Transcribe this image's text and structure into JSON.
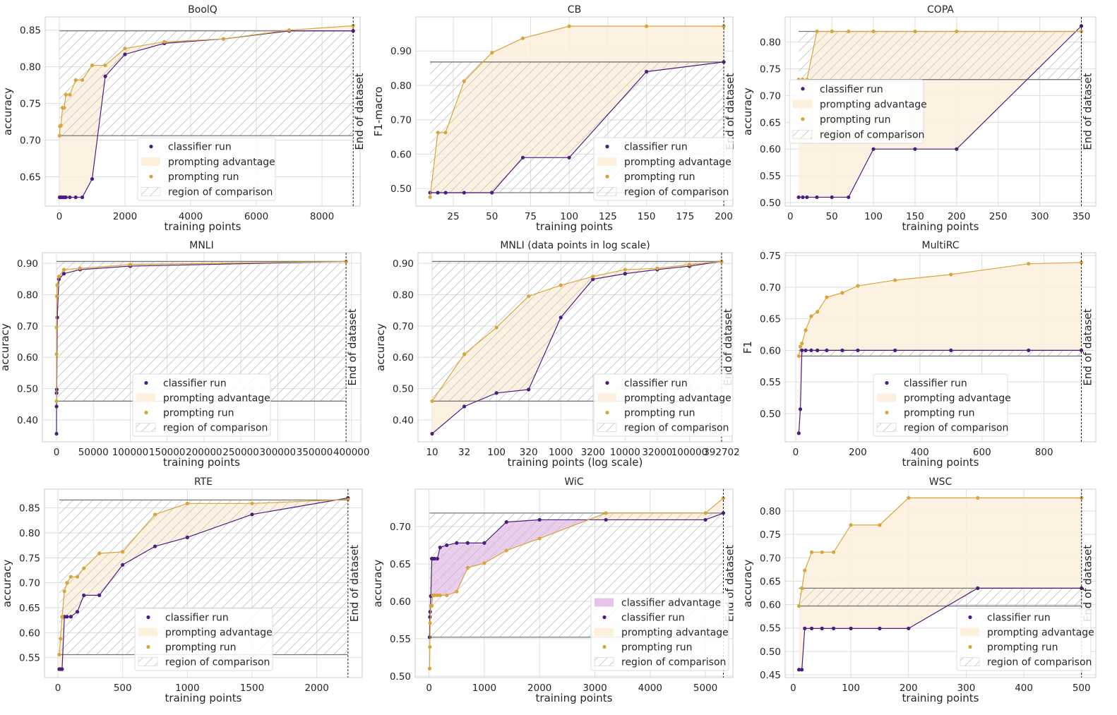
{
  "colors": {
    "classifier": "#4c1d80",
    "prompting": "#d8a53c",
    "prompting_advantage_fill": "#fdf0dc",
    "classifier_advantage_fill": "#e6c4ea",
    "region_lines": "#777777",
    "grid": "#dddddd"
  },
  "chart_data": [
    {
      "type": "line",
      "title": "BoolQ",
      "xlabel": "training points",
      "ylabel": "accuracy",
      "xlim": [
        -430,
        9160
      ],
      "ylim": [
        0.61,
        0.868
      ],
      "grid": true,
      "legend_placement": "lower center",
      "xticks": [
        0,
        2000,
        4000,
        6000,
        8000
      ],
      "xtick_labels": [
        "0",
        "2000",
        "4000",
        "6000",
        "8000"
      ],
      "yticks": [
        0.65,
        0.7,
        0.75,
        0.8,
        0.85
      ],
      "ytick_labels": [
        "0.65",
        "0.70",
        "0.75",
        "0.80",
        "0.85"
      ],
      "legend": [
        "classifier run",
        "prompting advantage",
        "prompting run",
        "region of comparison"
      ],
      "end_marker": {
        "x": 8950,
        "label": "End of dataset"
      },
      "region_of_comparison": {
        "x": [
          10,
          8950
        ],
        "y": [
          0.706,
          0.849
        ]
      },
      "x": [
        10,
        20,
        50,
        100,
        150,
        200,
        320,
        500,
        700,
        1000,
        1400,
        2000,
        3200,
        5000,
        7000,
        8950
      ],
      "series": [
        {
          "name": "classifier run",
          "values": [
            0.622,
            0.622,
            0.622,
            0.622,
            0.622,
            0.622,
            0.622,
            0.622,
            0.622,
            0.647,
            0.787,
            0.817,
            0.832,
            0.838,
            0.849,
            0.849
          ]
        },
        {
          "name": "prompting run",
          "values": [
            0.706,
            0.719,
            0.72,
            0.744,
            0.744,
            0.762,
            0.762,
            0.782,
            0.782,
            0.802,
            0.802,
            0.825,
            0.834,
            0.838,
            0.85,
            0.856
          ]
        }
      ]
    },
    {
      "type": "line",
      "title": "CB",
      "xlabel": "training points",
      "ylabel": "F1-macro",
      "xlim": [
        0.8,
        205.9
      ],
      "ylim": [
        0.449,
        0.999
      ],
      "grid": true,
      "legend_placement": "lower right",
      "xticks": [
        25,
        50,
        75,
        100,
        125,
        150,
        175,
        200
      ],
      "xtick_labels": [
        "25",
        "50",
        "75",
        "100",
        "125",
        "150",
        "175",
        "200"
      ],
      "yticks": [
        0.5,
        0.6,
        0.7,
        0.8,
        0.9
      ],
      "ytick_labels": [
        "0.50",
        "0.60",
        "0.70",
        "0.80",
        "0.90"
      ],
      "legend": [
        "classifier run",
        "prompting advantage",
        "prompting run",
        "region of comparison"
      ],
      "end_marker": {
        "x": 200,
        "label": "End of dataset"
      },
      "region_of_comparison": {
        "x": [
          10,
          200
        ],
        "y": [
          0.488,
          0.868
        ]
      },
      "x": [
        10,
        15,
        20,
        32,
        50,
        70,
        100,
        150,
        200
      ],
      "series": [
        {
          "name": "classifier run",
          "values": [
            0.488,
            0.488,
            0.488,
            0.488,
            0.488,
            0.59,
            0.59,
            0.84,
            0.868
          ]
        },
        {
          "name": "prompting run",
          "values": [
            0.475,
            0.663,
            0.663,
            0.812,
            0.895,
            0.937,
            0.972,
            0.972,
            0.972
          ]
        }
      ]
    },
    {
      "type": "line",
      "title": "COPA",
      "xlabel": "training points",
      "ylabel": "accuracy",
      "xlim": [
        -6.2,
        367.4
      ],
      "ylim": [
        0.4934,
        0.847
      ],
      "grid": true,
      "legend_placement": "center left",
      "xticks": [
        0,
        50,
        100,
        150,
        200,
        250,
        300,
        350
      ],
      "xtick_labels": [
        "0",
        "50",
        "100",
        "150",
        "200",
        "250",
        "300",
        "350"
      ],
      "yticks": [
        0.5,
        0.55,
        0.6,
        0.65,
        0.7,
        0.75,
        0.8
      ],
      "ytick_labels": [
        "0.50",
        "0.55",
        "0.60",
        "0.65",
        "0.70",
        "0.75",
        "0.80"
      ],
      "legend": [
        "classifier run",
        "prompting advantage",
        "prompting run",
        "region of comparison"
      ],
      "end_marker": {
        "x": 350,
        "label": "End of dataset"
      },
      "region_of_comparison": {
        "x": [
          10,
          350
        ],
        "y": [
          0.73,
          0.82
        ]
      },
      "x": [
        10,
        15,
        20,
        32,
        50,
        70,
        100,
        150,
        200,
        350
      ],
      "series": [
        {
          "name": "classifier run",
          "values": [
            0.51,
            0.51,
            0.51,
            0.51,
            0.51,
            0.51,
            0.6,
            0.6,
            0.6,
            0.83
          ]
        },
        {
          "name": "prompting run",
          "values": [
            0.73,
            0.73,
            0.73,
            0.82,
            0.82,
            0.82,
            0.82,
            0.82,
            0.82,
            0.82
          ]
        }
      ]
    },
    {
      "type": "line",
      "title": "MNLI",
      "xlabel": "training points",
      "ylabel": "accuracy",
      "xlim": [
        -19200,
        412700
      ],
      "ylim": [
        0.33,
        0.934
      ],
      "grid": true,
      "legend_placement": "lower center",
      "xticks": [
        0,
        50000,
        100000,
        150000,
        200000,
        250000,
        300000,
        350000,
        400000
      ],
      "xtick_labels": [
        "0",
        "50000",
        "100000",
        "150000",
        "200000",
        "250000",
        "300000",
        "350000",
        "400000"
      ],
      "yticks": [
        0.4,
        0.5,
        0.6,
        0.7,
        0.8,
        0.9
      ],
      "ytick_labels": [
        "0.40",
        "0.50",
        "0.60",
        "0.70",
        "0.80",
        "0.90"
      ],
      "legend": [
        "classifier run",
        "prompting advantage",
        "prompting run",
        "region of comparison"
      ],
      "end_marker": {
        "x": 392702,
        "label": "End of dataset"
      },
      "region_of_comparison": {
        "x": [
          10,
          392702
        ],
        "y": [
          0.46,
          0.906
        ]
      },
      "x": [
        10,
        32,
        100,
        320,
        1000,
        3200,
        10000,
        32000,
        100000,
        392702
      ],
      "series": [
        {
          "name": "classifier run",
          "values": [
            0.356,
            0.443,
            0.486,
            0.497,
            0.727,
            0.849,
            0.867,
            0.88,
            0.891,
            0.906
          ]
        },
        {
          "name": "prompting run",
          "values": [
            0.46,
            0.61,
            0.695,
            0.795,
            0.83,
            0.858,
            0.88,
            0.884,
            0.896,
            0.906
          ]
        }
      ]
    },
    {
      "type": "line",
      "title": "MNLI (data points in log scale)",
      "xlabel": "training points (log scale)",
      "ylabel": "accuracy",
      "xscale": "log",
      "ylim": [
        0.33,
        0.934
      ],
      "grid": true,
      "legend_placement": "lower right",
      "xticks": [
        10,
        32,
        100,
        320,
        1000,
        3200,
        10000,
        32000,
        100000,
        392702
      ],
      "xtick_labels": [
        "10",
        "32",
        "100",
        "320",
        "1000",
        "3200",
        "10000",
        "32000",
        "100000",
        "392702"
      ],
      "yticks": [
        0.4,
        0.5,
        0.6,
        0.7,
        0.8,
        0.9
      ],
      "ytick_labels": [
        "0.40",
        "0.50",
        "0.60",
        "0.70",
        "0.80",
        "0.90"
      ],
      "legend": [
        "classifier run",
        "prompting advantage",
        "prompting run",
        "region of comparison"
      ],
      "end_marker": {
        "x": 392702,
        "label": "End of dataset"
      },
      "region_of_comparison": {
        "x": [
          10,
          392702
        ],
        "y": [
          0.46,
          0.906
        ]
      },
      "x": [
        10,
        32,
        100,
        320,
        1000,
        3200,
        10000,
        32000,
        100000,
        392702
      ],
      "series": [
        {
          "name": "classifier run",
          "values": [
            0.356,
            0.443,
            0.486,
            0.497,
            0.727,
            0.849,
            0.867,
            0.88,
            0.891,
            0.906
          ]
        },
        {
          "name": "prompting run",
          "values": [
            0.46,
            0.61,
            0.695,
            0.795,
            0.83,
            0.858,
            0.88,
            0.884,
            0.896,
            0.906
          ]
        }
      ]
    },
    {
      "type": "line",
      "title": "MultiRC",
      "xlabel": "training points",
      "ylabel": "F1",
      "xlim": [
        -34,
        966.6
      ],
      "ylim": [
        0.4553,
        0.7545
      ],
      "grid": true,
      "legend_placement": "lower center",
      "xticks": [
        0,
        200,
        400,
        600,
        800
      ],
      "xtick_labels": [
        "0",
        "200",
        "400",
        "600",
        "800"
      ],
      "yticks": [
        0.5,
        0.55,
        0.6,
        0.65,
        0.7,
        0.75
      ],
      "ytick_labels": [
        "0.50",
        "0.55",
        "0.60",
        "0.65",
        "0.70",
        "0.75"
      ],
      "legend": [
        "classifier run",
        "prompting advantage",
        "prompting run",
        "region of comparison"
      ],
      "end_marker": {
        "x": 920,
        "label": "End of dataset"
      },
      "region_of_comparison": {
        "x": [
          10,
          920
        ],
        "y": [
          0.591,
          0.6
        ]
      },
      "x": [
        10,
        15,
        20,
        32,
        50,
        70,
        100,
        150,
        200,
        320,
        500,
        750,
        920
      ],
      "series": [
        {
          "name": "classifier run",
          "values": [
            0.469,
            0.507,
            0.6,
            0.6,
            0.6,
            0.6,
            0.6,
            0.6,
            0.6,
            0.6,
            0.6,
            0.6,
            0.6
          ]
        },
        {
          "name": "prompting run",
          "values": [
            0.591,
            0.606,
            0.611,
            0.632,
            0.654,
            0.661,
            0.684,
            0.691,
            0.702,
            0.711,
            0.72,
            0.737,
            0.739
          ]
        }
      ]
    },
    {
      "type": "line",
      "title": "RTE",
      "xlabel": "training points",
      "ylabel": "accuracy",
      "xlim": [
        -104,
        2351
      ],
      "ylim": [
        0.51,
        0.8877
      ],
      "grid": true,
      "legend_placement": "lower center",
      "xticks": [
        0,
        500,
        1000,
        1500,
        2000
      ],
      "xtick_labels": [
        "0",
        "500",
        "1000",
        "1500",
        "2000"
      ],
      "yticks": [
        0.55,
        0.6,
        0.65,
        0.7,
        0.75,
        0.8,
        0.85
      ],
      "ytick_labels": [
        "0.55",
        "0.60",
        "0.65",
        "0.70",
        "0.75",
        "0.80",
        "0.85"
      ],
      "legend": [
        "classifier run",
        "prompting advantage",
        "prompting run",
        "region of comparison"
      ],
      "end_marker": {
        "x": 2241,
        "label": "End of dataset"
      },
      "region_of_comparison": {
        "x": [
          10,
          2241
        ],
        "y": [
          0.556,
          0.866
        ]
      },
      "x": [
        10,
        20,
        32,
        50,
        70,
        100,
        150,
        200,
        320,
        500,
        750,
        1000,
        1500,
        2241
      ],
      "series": [
        {
          "name": "classifier run",
          "values": [
            0.527,
            0.527,
            0.527,
            0.632,
            0.632,
            0.632,
            0.642,
            0.675,
            0.675,
            0.736,
            0.773,
            0.791,
            0.837,
            0.87
          ]
        },
        {
          "name": "prompting run",
          "values": [
            0.556,
            0.588,
            0.632,
            0.683,
            0.7,
            0.712,
            0.712,
            0.729,
            0.759,
            0.762,
            0.837,
            0.859,
            0.859,
            0.867
          ]
        }
      ]
    },
    {
      "type": "line",
      "title": "WiC",
      "xlabel": "training points",
      "ylabel": "accuracy",
      "xlim": [
        -251,
        5497
      ],
      "ylim": [
        0.498,
        0.75
      ],
      "grid": true,
      "legend_placement": "lower right",
      "xticks": [
        0,
        1000,
        2000,
        3000,
        4000,
        5000
      ],
      "xtick_labels": [
        "0",
        "1000",
        "2000",
        "3000",
        "4000",
        "5000"
      ],
      "yticks": [
        0.5,
        0.55,
        0.6,
        0.65,
        0.7
      ],
      "ytick_labels": [
        "0.50",
        "0.55",
        "0.60",
        "0.65",
        "0.70"
      ],
      "legend": [
        "classifier advantage",
        "classifier run",
        "prompting advantage",
        "prompting run",
        "region of comparison"
      ],
      "end_marker": {
        "x": 5324,
        "label": "End of dataset"
      },
      "region_of_comparison": {
        "x": [
          10,
          5324
        ],
        "y": [
          0.552,
          0.718
        ]
      },
      "x": [
        10,
        15,
        20,
        32,
        50,
        70,
        100,
        150,
        200,
        320,
        500,
        700,
        1000,
        1400,
        2000,
        3200,
        5000,
        5324
      ],
      "series": [
        {
          "name": "classifier run",
          "values": [
            0.552,
            0.579,
            0.586,
            0.607,
            0.657,
            0.657,
            0.657,
            0.657,
            0.672,
            0.675,
            0.678,
            0.678,
            0.678,
            0.706,
            0.709,
            0.709,
            0.709,
            0.718
          ]
        },
        {
          "name": "prompting run",
          "values": [
            0.51,
            0.539,
            0.571,
            0.594,
            0.594,
            0.608,
            0.608,
            0.608,
            0.608,
            0.608,
            0.613,
            0.645,
            0.651,
            0.668,
            0.684,
            0.718,
            0.718,
            0.738
          ]
        }
      ]
    },
    {
      "type": "line",
      "title": "WSC",
      "xlabel": "training points",
      "ylabel": "accuracy",
      "xlim": [
        -14,
        524.8
      ],
      "ylim": [
        0.444,
        0.8467
      ],
      "grid": true,
      "legend_placement": "lower right",
      "xticks": [
        0,
        100,
        200,
        300,
        400,
        500
      ],
      "xtick_labels": [
        "0",
        "100",
        "200",
        "300",
        "400",
        "500"
      ],
      "yticks": [
        0.45,
        0.5,
        0.55,
        0.6,
        0.65,
        0.7,
        0.75,
        0.8
      ],
      "ytick_labels": [
        "0.45",
        "0.50",
        "0.55",
        "0.60",
        "0.65",
        "0.70",
        "0.75",
        "0.80"
      ],
      "legend": [
        "classifier run",
        "prompting advantage",
        "prompting run",
        "region of comparison"
      ],
      "end_marker": {
        "x": 500,
        "label": "End of dataset"
      },
      "region_of_comparison": {
        "x": [
          10,
          500
        ],
        "y": [
          0.597,
          0.635
        ]
      },
      "x": [
        10,
        15,
        20,
        32,
        50,
        70,
        100,
        150,
        200,
        320,
        500
      ],
      "series": [
        {
          "name": "classifier run",
          "values": [
            0.461,
            0.461,
            0.549,
            0.549,
            0.549,
            0.549,
            0.549,
            0.549,
            0.549,
            0.635,
            0.635
          ]
        },
        {
          "name": "prompting run",
          "values": [
            0.597,
            0.635,
            0.673,
            0.712,
            0.712,
            0.712,
            0.77,
            0.77,
            0.828,
            0.828,
            0.828
          ]
        }
      ]
    }
  ]
}
